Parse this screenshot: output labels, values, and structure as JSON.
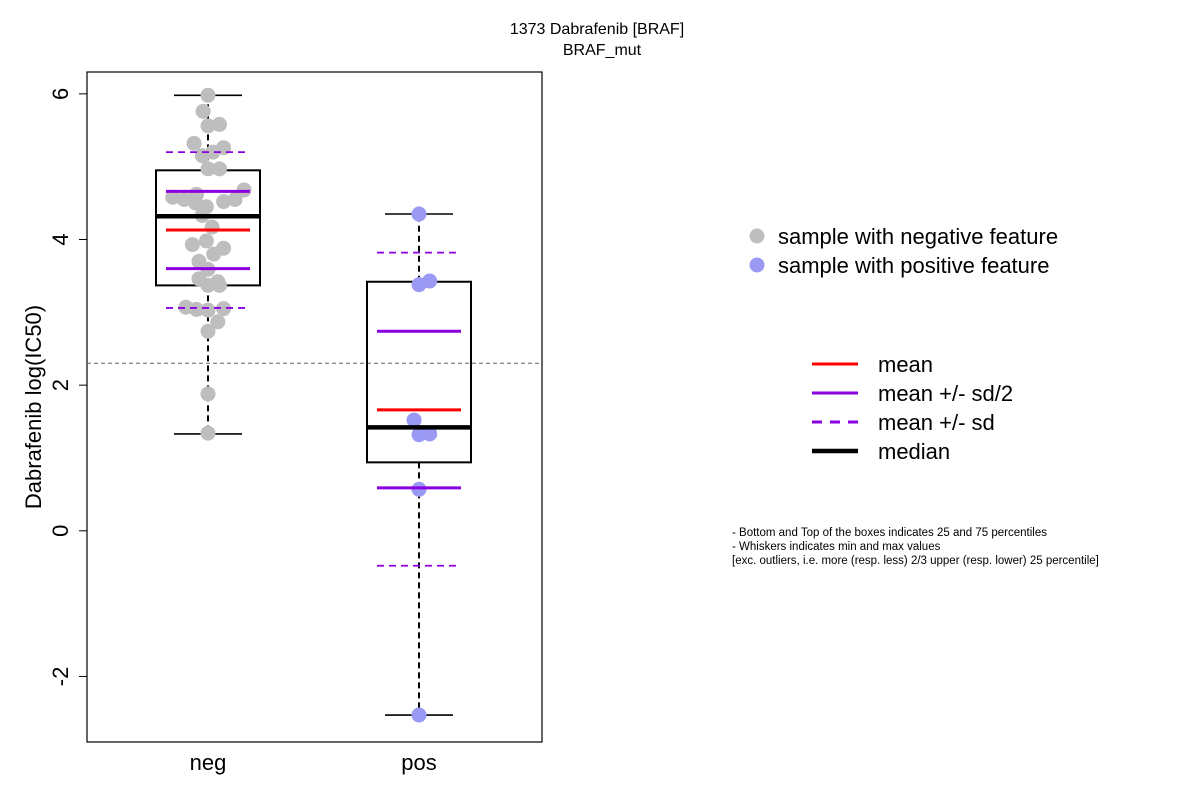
{
  "chart_data": {
    "type": "box",
    "title": "1373 Dabrafenib [BRAF]",
    "subtitle": "BRAF_mut",
    "ylabel": "Dabrafenib log(IC50)",
    "xlabel": "",
    "ylim": [
      -2.9,
      6.3
    ],
    "yticks": [
      -2,
      0,
      2,
      4,
      6
    ],
    "categories": [
      "neg",
      "pos"
    ],
    "threshold": 2.3,
    "colors": {
      "neg_point": "#bebebe",
      "pos_point": "#9a9af5",
      "mean": "#ff0000",
      "sd": "#8b00e0",
      "median": "#000000",
      "threshold": "#666666"
    },
    "groups": [
      {
        "name": "neg",
        "min": 1.33,
        "q1": 3.37,
        "median": 4.32,
        "q3": 4.95,
        "max": 5.98,
        "mean": 4.13,
        "mean_minus_half_sd": 3.6,
        "mean_plus_half_sd": 4.66,
        "mean_minus_sd": 3.06,
        "mean_plus_sd": 5.2,
        "points": [
          [
            0,
            5.98
          ],
          [
            -0.06,
            5.76
          ],
          [
            0,
            5.56
          ],
          [
            0.14,
            5.58
          ],
          [
            -0.17,
            5.32
          ],
          [
            0.19,
            5.26
          ],
          [
            -0.07,
            5.15
          ],
          [
            0.06,
            5.2
          ],
          [
            0,
            4.97
          ],
          [
            0.14,
            4.97
          ],
          [
            -0.43,
            4.58
          ],
          [
            -0.29,
            4.55
          ],
          [
            -0.14,
            4.62
          ],
          [
            -0.15,
            4.5
          ],
          [
            -0.02,
            4.45
          ],
          [
            0.19,
            4.52
          ],
          [
            0.33,
            4.55
          ],
          [
            0.44,
            4.68
          ],
          [
            -0.07,
            4.33
          ],
          [
            0.05,
            4.17
          ],
          [
            -0.19,
            3.93
          ],
          [
            -0.02,
            3.98
          ],
          [
            0.19,
            3.88
          ],
          [
            0.07,
            3.8
          ],
          [
            -0.11,
            3.7
          ],
          [
            0,
            3.59
          ],
          [
            -0.11,
            3.46
          ],
          [
            0.12,
            3.42
          ],
          [
            0,
            3.37
          ],
          [
            0.14,
            3.37
          ],
          [
            -0.27,
            3.07
          ],
          [
            -0.14,
            3.04
          ],
          [
            0,
            3.03
          ],
          [
            0.19,
            3.05
          ],
          [
            0.12,
            2.87
          ],
          [
            0,
            2.74
          ],
          [
            0,
            1.88
          ],
          [
            0,
            1.34
          ]
        ]
      },
      {
        "name": "pos",
        "min": -2.53,
        "q1": 0.94,
        "median": 1.42,
        "q3": 3.42,
        "max": 4.35,
        "mean": 1.66,
        "mean_minus_half_sd": 0.59,
        "mean_plus_half_sd": 2.74,
        "mean_minus_sd": -0.48,
        "mean_plus_sd": 3.82,
        "points": [
          [
            0,
            4.35
          ],
          [
            0,
            3.38
          ],
          [
            0.13,
            3.43
          ],
          [
            -0.06,
            1.52
          ],
          [
            0,
            1.32
          ],
          [
            0.13,
            1.33
          ],
          [
            0,
            0.57
          ],
          [
            0,
            -2.53
          ]
        ]
      }
    ],
    "legend_points": [
      {
        "label": "sample with negative feature",
        "color": "#bebebe"
      },
      {
        "label": "sample with positive feature",
        "color": "#9a9af5"
      }
    ],
    "legend_lines": [
      {
        "label": "mean",
        "color": "#ff0000",
        "style": "solid"
      },
      {
        "label": "mean +/- sd/2",
        "color": "#8b00e0",
        "style": "solid"
      },
      {
        "label": "mean +/- sd",
        "color": "#8b00e0",
        "style": "dashed"
      },
      {
        "label": "median",
        "color": "#000000",
        "style": "thick"
      }
    ],
    "notes": [
      "- Bottom and Top of the boxes indicates 25 and 75 percentiles",
      "- Whiskers indicates min and max values",
      "[exc. outliers, i.e. more (resp. less) 2/3 upper (resp. lower) 25 percentile]"
    ]
  }
}
